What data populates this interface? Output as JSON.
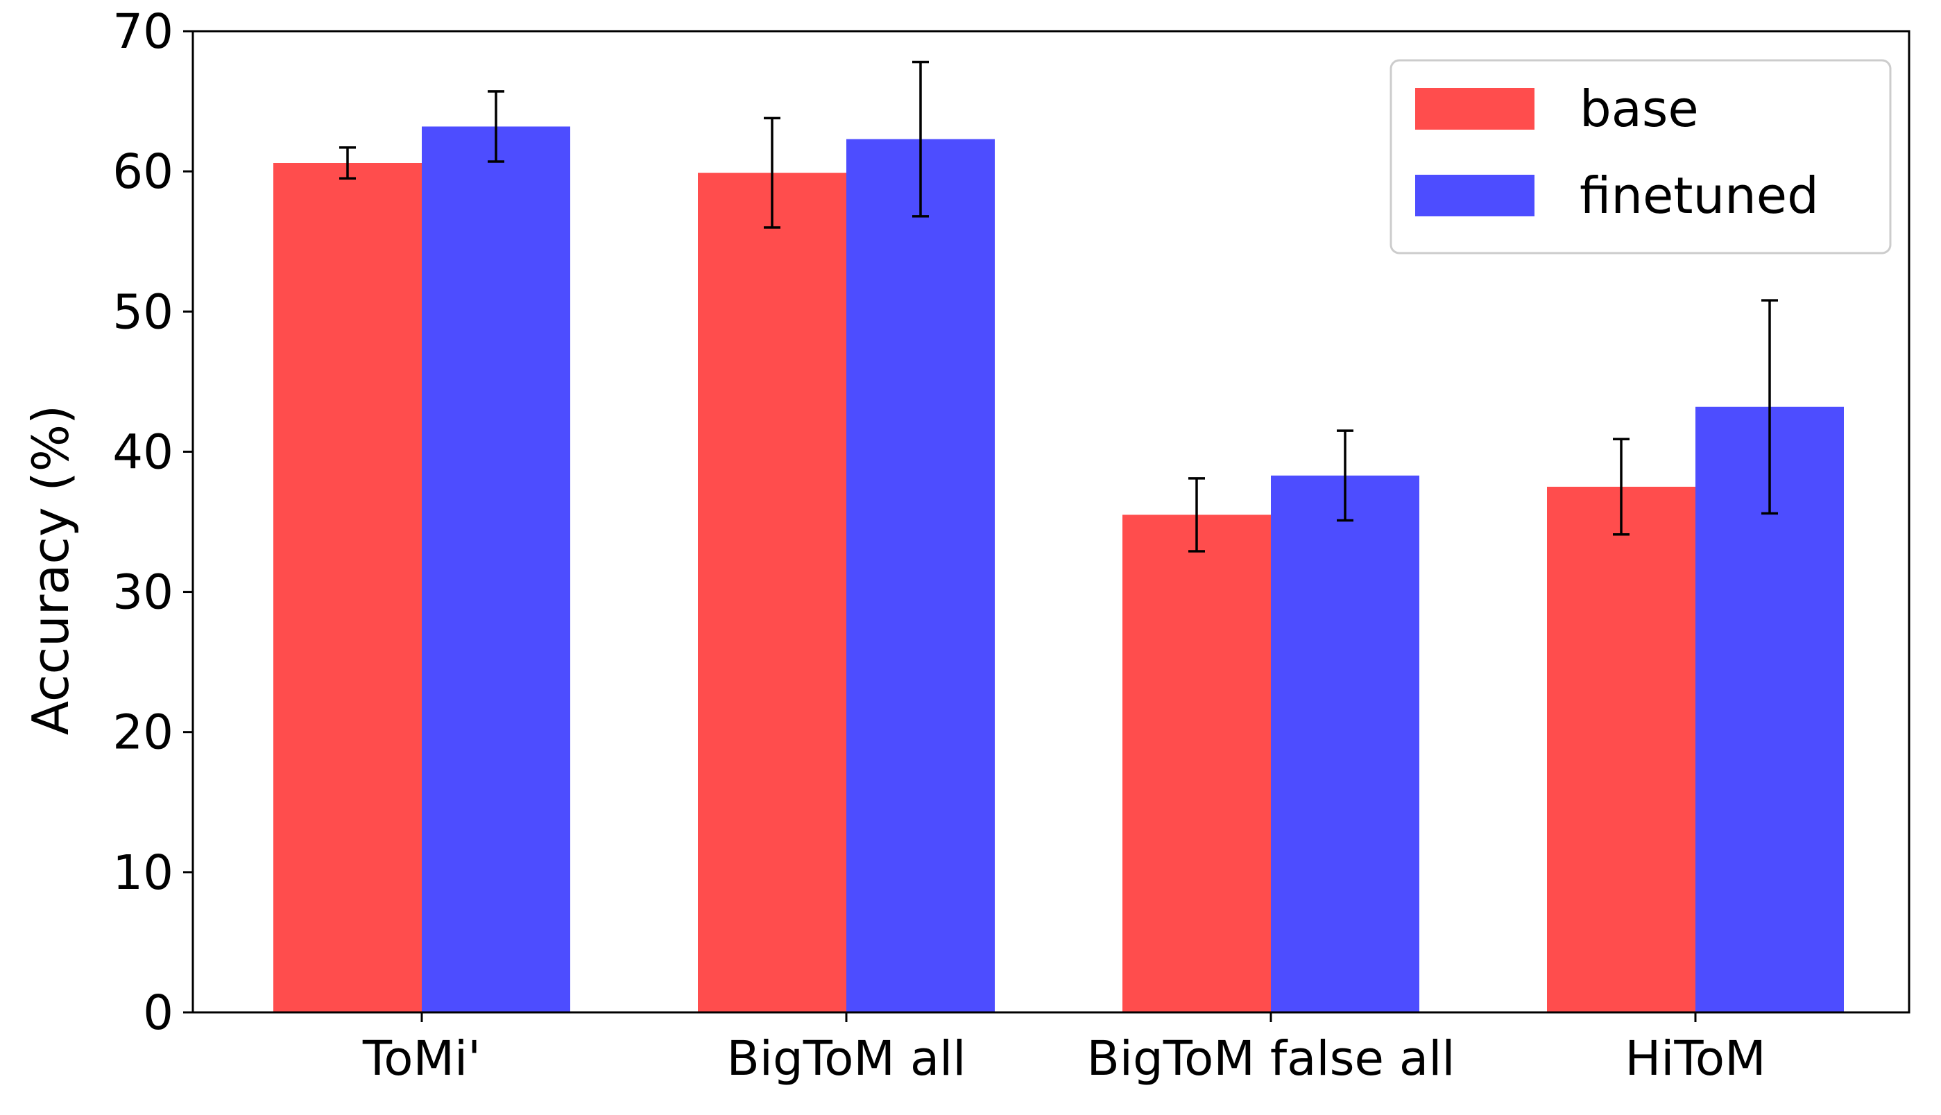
{
  "chart_data": {
    "type": "bar",
    "title": "",
    "xlabel": "",
    "ylabel": "Accuracy (%)",
    "ylim": [
      0,
      70
    ],
    "yticks": [
      "0",
      "10",
      "20",
      "30",
      "40",
      "50",
      "60",
      "70"
    ],
    "categories": [
      "ToMi'",
      "BigToM all",
      "BigToM false all",
      "HiToM"
    ],
    "series": [
      {
        "name": "base",
        "color": "#ff4d4d",
        "values": [
          60.6,
          59.9,
          35.5,
          37.5
        ],
        "error": [
          1.1,
          3.9,
          2.6,
          3.4
        ]
      },
      {
        "name": "finetuned",
        "color": "#4d4dff",
        "values": [
          63.2,
          62.3,
          38.3,
          43.2
        ],
        "error": [
          2.5,
          5.5,
          3.2,
          7.6
        ]
      }
    ],
    "legend": "top-right",
    "grid": false
  }
}
